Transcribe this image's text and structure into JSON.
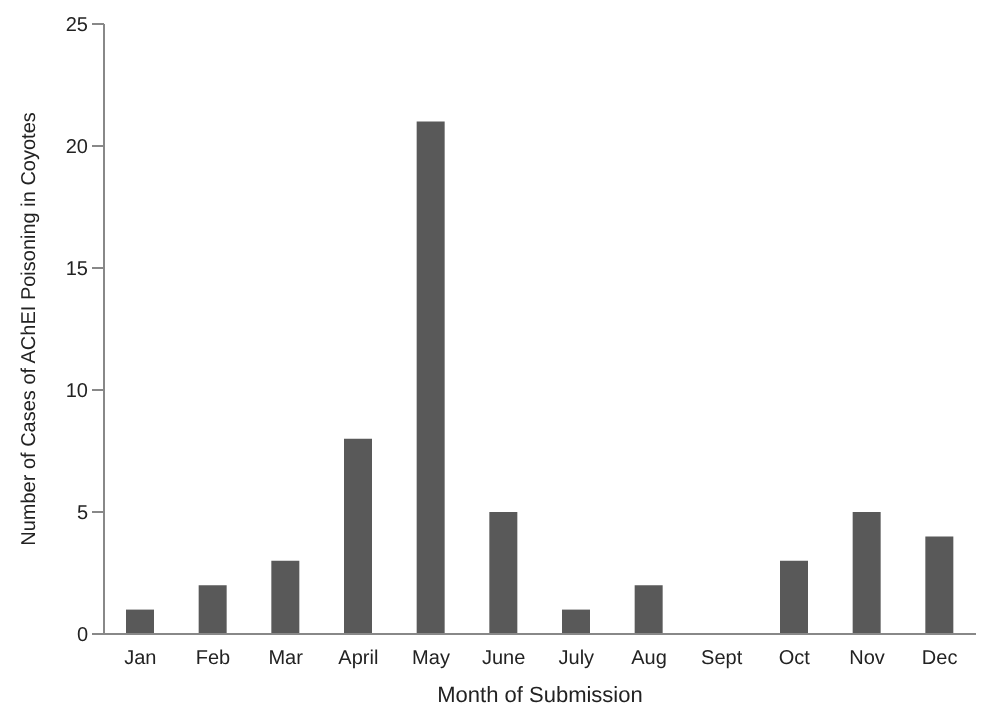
{
  "chart_data": {
    "type": "bar",
    "xlabel": "Month of Submission",
    "ylabel": "Number of Cases of AChEI Poisoning in Coyotes",
    "categories": [
      "Jan",
      "Feb",
      "Mar",
      "April",
      "May",
      "June",
      "July",
      "Aug",
      "Sept",
      "Oct",
      "Nov",
      "Dec"
    ],
    "values": [
      1,
      2,
      3,
      8,
      21,
      5,
      1,
      2,
      0,
      3,
      5,
      4
    ],
    "color": "#595959",
    "ylim": [
      0,
      25
    ],
    "yticks": [
      0,
      5,
      10,
      15,
      20,
      25
    ],
    "grid": false,
    "legend": false
  }
}
